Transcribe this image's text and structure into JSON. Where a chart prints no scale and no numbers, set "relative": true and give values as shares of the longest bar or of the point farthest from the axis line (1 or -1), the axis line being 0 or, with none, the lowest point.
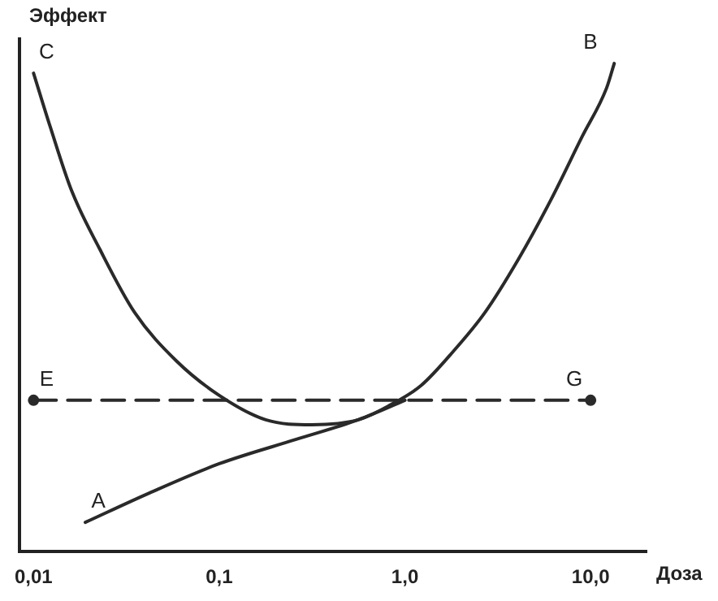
{
  "chart_data": {
    "type": "line",
    "xlabel": "Доза",
    "ylabel": "Эффект",
    "relative": true,
    "log": "x",
    "grid": false,
    "legend": false,
    "marker": "none",
    "xlim": [
      0.0084,
      20
    ],
    "xticks": [
      {
        "value": 0.01,
        "label": "0,01"
      },
      {
        "value": 0.1,
        "label": "0,1"
      },
      {
        "value": 1,
        "label": "1,0"
      },
      {
        "value": 10,
        "label": "10,0"
      }
    ],
    "series": [
      {
        "color": "#2a2a2a",
        "x": [
          0.01,
          0.0123,
          0.016,
          0.0227,
          0.035,
          0.059,
          0.1,
          0.178,
          0.316,
          0.56,
          0.83,
          1.22,
          1.82,
          2.7,
          4.1,
          6.1,
          9.0,
          12.2,
          13.4
        ],
        "values": [
          0.98,
          0.87,
          0.74,
          0.62,
          0.49,
          0.39,
          0.32,
          0.27,
          0.26,
          0.27,
          0.3,
          0.34,
          0.41,
          0.49,
          0.6,
          0.72,
          0.85,
          0.95,
          1
        ]
      },
      {
        "color": "#2a2a2a",
        "x": [
          0.019,
          0.042,
          0.1,
          0.26,
          0.56,
          1.0
        ],
        "values": [
          0.06,
          0.12,
          0.18,
          0.23,
          0.27,
          0.31
        ]
      },
      {
        "color": "#2a2a2a",
        "x": [
          0.01,
          10
        ],
        "values": [
          0.31,
          0.31
        ],
        "line_style": "dashed",
        "marker": "circle"
      }
    ],
    "annotations": [
      {
        "text": "C",
        "x": 0.01,
        "y": 0.98
      },
      {
        "text": "B",
        "x": 12.2,
        "y": 1
      },
      {
        "text": "A",
        "x": 0.019,
        "y": 0.06
      },
      {
        "text": "E",
        "x": 0.01,
        "y": 0.31
      },
      {
        "text": "G",
        "x": 10,
        "y": 0.31
      }
    ]
  }
}
